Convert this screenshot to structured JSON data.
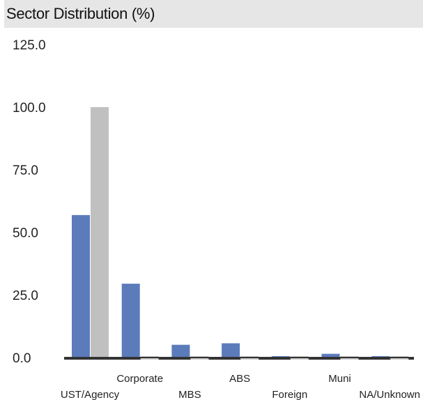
{
  "chart_data": {
    "type": "bar",
    "title": "Sector Distribution (%)",
    "xlabel": "",
    "ylabel": "",
    "ylim": [
      0,
      125
    ],
    "yticks": [
      "0.0",
      "25.0",
      "50.0",
      "75.0",
      "100.0",
      "125.0"
    ],
    "grid": false,
    "categories": [
      "UST/Agency",
      "Corporate",
      "MBS",
      "ABS",
      "Foreign",
      "Muni",
      "NA/Unknown"
    ],
    "series": [
      {
        "values": [
          56.9,
          29.5,
          5.1,
          5.7,
          0.5,
          1.5,
          0.5
        ],
        "color": "#5b7bbb"
      },
      {
        "values": [
          100.0,
          0.0,
          0.0,
          0.0,
          0.0,
          0.0,
          0.0
        ],
        "color": "#c0c0c0"
      }
    ],
    "axis_color": "#333333"
  }
}
